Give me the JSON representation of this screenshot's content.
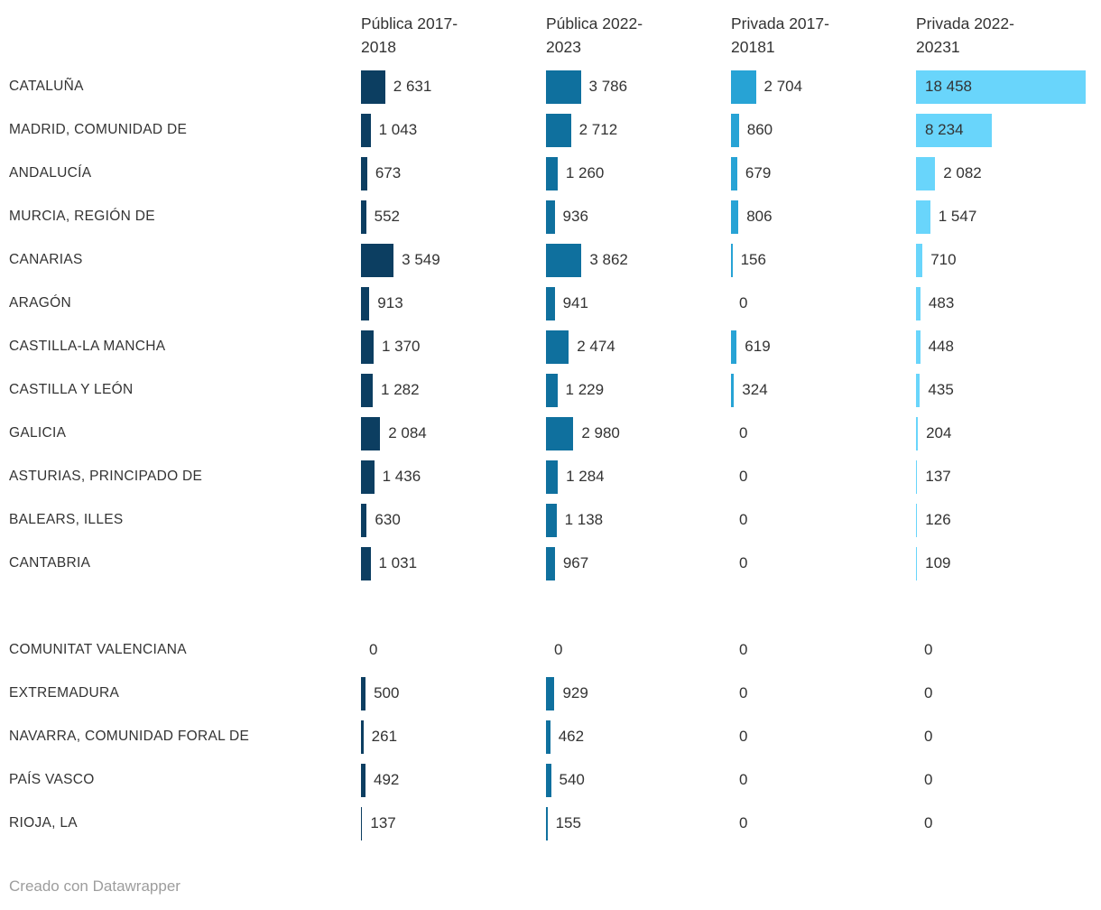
{
  "chart_data": {
    "type": "bar",
    "orientation": "horizontal",
    "title": "",
    "categories": [
      "CATALUÑA",
      "MADRID, COMUNIDAD DE",
      "ANDALUCÍA",
      "MURCIA, REGIÓN DE",
      "CANARIAS",
      "ARAGÓN",
      "CASTILLA-LA MANCHA",
      "CASTILLA Y LEÓN",
      "GALICIA",
      "ASTURIAS, PRINCIPADO DE",
      "BALEARS, ILLES",
      "CANTABRIA",
      "COMUNITAT VALENCIANA",
      "EXTREMADURA",
      "NAVARRA, COMUNIDAD FORAL DE",
      "PAÍS VASCO",
      "RIOJA, LA"
    ],
    "series": [
      {
        "name": "Pública 2017-2018",
        "values": [
          2631,
          1043,
          673,
          552,
          3549,
          913,
          1370,
          1282,
          2084,
          1436,
          630,
          1031,
          0,
          500,
          261,
          492,
          137
        ]
      },
      {
        "name": "Pública 2022-2023",
        "values": [
          3786,
          2712,
          1260,
          936,
          3862,
          941,
          2474,
          1229,
          2980,
          1284,
          1138,
          967,
          0,
          929,
          462,
          540,
          155
        ]
      },
      {
        "name": "Privada 2017-20181",
        "values": [
          2704,
          860,
          679,
          806,
          156,
          0,
          619,
          324,
          0,
          0,
          0,
          0,
          0,
          0,
          0,
          0,
          0
        ]
      },
      {
        "name": "Privada 2022-20231",
        "values": [
          18458,
          8234,
          2082,
          1547,
          710,
          483,
          448,
          435,
          204,
          137,
          126,
          109,
          0,
          0,
          0,
          0,
          0
        ]
      }
    ],
    "xmax": 18458,
    "value_labels": true,
    "grid": false,
    "legend_position": "column-headers",
    "group_break_after": "CANTABRIA"
  },
  "columns": [
    {
      "line1": "Pública 2017-",
      "line2": "2018",
      "color": "#0c3e61"
    },
    {
      "line1": "Pública 2022-",
      "line2": "2023",
      "color": "#0f709e"
    },
    {
      "line1": "Privada 2017-",
      "line2": "20181",
      "color": "#27a3d5"
    },
    {
      "line1": "Privada 2022-",
      "line2": "20231",
      "color": "#69d5fb"
    }
  ],
  "groups": [
    {
      "rows": [
        {
          "label": "CATALUÑA",
          "values": [
            2631,
            3786,
            2704,
            18458
          ],
          "display": [
            "2 631",
            "3 786",
            "2 704",
            "18 458"
          ]
        },
        {
          "label": "MADRID, COMUNIDAD DE",
          "values": [
            1043,
            2712,
            860,
            8234
          ],
          "display": [
            "1 043",
            "2 712",
            "860",
            "8 234"
          ]
        },
        {
          "label": "ANDALUCÍA",
          "values": [
            673,
            1260,
            679,
            2082
          ],
          "display": [
            "673",
            "1 260",
            "679",
            "2 082"
          ]
        },
        {
          "label": "MURCIA, REGIÓN DE",
          "values": [
            552,
            936,
            806,
            1547
          ],
          "display": [
            "552",
            "936",
            "806",
            "1 547"
          ]
        },
        {
          "label": "CANARIAS",
          "values": [
            3549,
            3862,
            156,
            710
          ],
          "display": [
            "3 549",
            "3 862",
            "156",
            "710"
          ]
        },
        {
          "label": "ARAGÓN",
          "values": [
            913,
            941,
            0,
            483
          ],
          "display": [
            "913",
            "941",
            "0",
            "483"
          ]
        },
        {
          "label": "CASTILLA-LA MANCHA",
          "values": [
            1370,
            2474,
            619,
            448
          ],
          "display": [
            "1 370",
            "2 474",
            "619",
            "448"
          ]
        },
        {
          "label": "CASTILLA Y LEÓN",
          "values": [
            1282,
            1229,
            324,
            435
          ],
          "display": [
            "1 282",
            "1 229",
            "324",
            "435"
          ]
        },
        {
          "label": "GALICIA",
          "values": [
            2084,
            2980,
            0,
            204
          ],
          "display": [
            "2 084",
            "2 980",
            "0",
            "204"
          ]
        },
        {
          "label": "ASTURIAS, PRINCIPADO DE",
          "values": [
            1436,
            1284,
            0,
            137
          ],
          "display": [
            "1 436",
            "1 284",
            "0",
            "137"
          ]
        },
        {
          "label": "BALEARS, ILLES",
          "values": [
            630,
            1138,
            0,
            126
          ],
          "display": [
            "630",
            "1 138",
            "0",
            "126"
          ]
        },
        {
          "label": "CANTABRIA",
          "values": [
            1031,
            967,
            0,
            109
          ],
          "display": [
            "1 031",
            "967",
            "0",
            "109"
          ]
        }
      ]
    },
    {
      "rows": [
        {
          "label": "COMUNITAT VALENCIANA",
          "values": [
            0,
            0,
            0,
            0
          ],
          "display": [
            "0",
            "0",
            "0",
            "0"
          ]
        },
        {
          "label": "EXTREMADURA",
          "values": [
            500,
            929,
            0,
            0
          ],
          "display": [
            "500",
            "929",
            "0",
            "0"
          ]
        },
        {
          "label": "NAVARRA, COMUNIDAD FORAL DE",
          "values": [
            261,
            462,
            0,
            0
          ],
          "display": [
            "261",
            "462",
            "0",
            "0"
          ]
        },
        {
          "label": "PAÍS VASCO",
          "values": [
            492,
            540,
            0,
            0
          ],
          "display": [
            "492",
            "540",
            "0",
            "0"
          ]
        },
        {
          "label": "RIOJA, LA",
          "values": [
            137,
            155,
            0,
            0
          ],
          "display": [
            "137",
            "155",
            "0",
            "0"
          ]
        }
      ]
    }
  ],
  "footer": {
    "text": "Creado con Datawrapper"
  }
}
